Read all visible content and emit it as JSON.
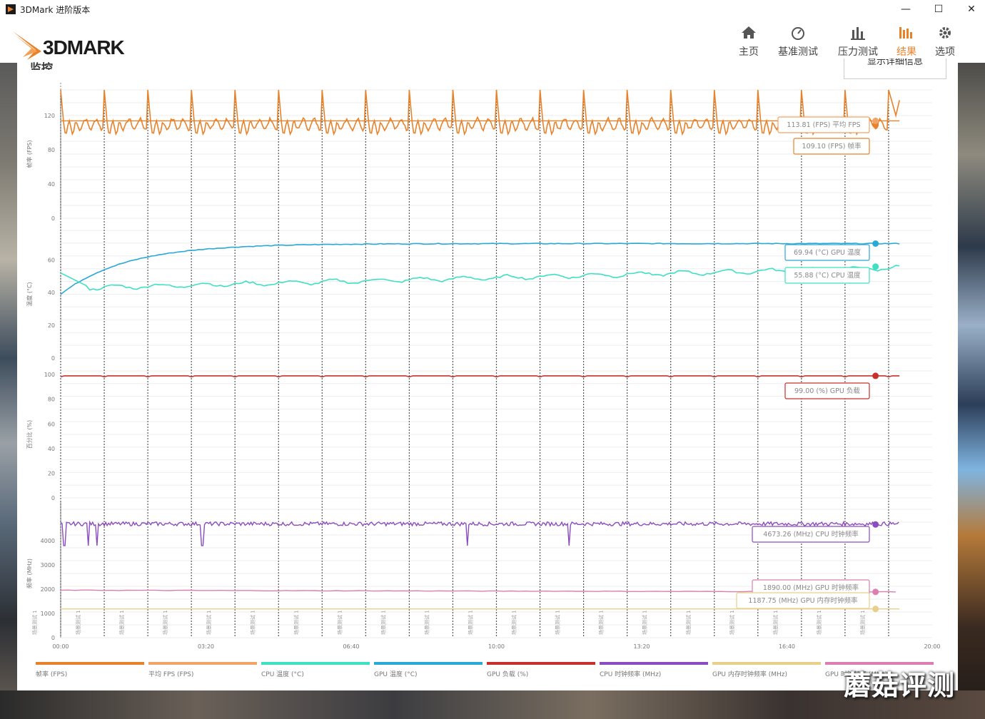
{
  "window": {
    "title": "3DMark 进阶版本",
    "min": "—",
    "max": "☐",
    "close": "✕"
  },
  "logo": {
    "text": "3DMARK"
  },
  "nav": [
    {
      "label": "主页",
      "icon": "home-icon"
    },
    {
      "label": "基准测试",
      "icon": "gauge-icon"
    },
    {
      "label": "压力测试",
      "icon": "bars-icon"
    },
    {
      "label": "结果",
      "icon": "results-icon",
      "active": true
    },
    {
      "label": "选项",
      "icon": "gear-icon"
    }
  ],
  "page": {
    "title": "监控",
    "details_button": "显示详细信息"
  },
  "colors": {
    "fps": "#e8822a",
    "avg_fps": "#f0a468",
    "cpu_temp": "#3ee0c2",
    "gpu_temp": "#2aa8d8",
    "gpu_load": "#c8302c",
    "cpu_clock": "#8a4cc0",
    "gpu_mem_clock": "#e8cf8a",
    "gpu_clock": "#dc7fb0"
  },
  "chart_data": [
    {
      "type": "line",
      "ylabel": "帧率 (FPS)",
      "yticks": [
        0,
        40,
        80,
        120
      ],
      "ylim": [
        0,
        150
      ],
      "series": [
        {
          "name": "帧率 (FPS)",
          "pattern": "sawtooth",
          "low": 98,
          "high": 150,
          "period_s": 210
        },
        {
          "name": "平均 FPS (FPS)",
          "constant": 113.81
        }
      ],
      "labels": [
        "113.81 (FPS) 平均 FPS",
        "109.10 (FPS) 帧率"
      ]
    },
    {
      "type": "line",
      "ylabel": "温度 (°C)",
      "yticks": [
        0,
        20,
        40,
        60
      ],
      "ylim": [
        0,
        78
      ],
      "series": [
        {
          "name": "GPU 温度 (°C)",
          "start": 39,
          "end": 69.94
        },
        {
          "name": "CPU 温度 (°C)",
          "start": 52,
          "end": 55.88
        }
      ],
      "labels": [
        "69.94 (°C) GPU 温度",
        "55.88 (°C) CPU 温度"
      ]
    },
    {
      "type": "line",
      "ylabel": "百分比 (%)",
      "yticks": [
        0,
        20,
        40,
        60,
        80,
        100
      ],
      "ylim": [
        0,
        103
      ],
      "series": [
        {
          "name": "GPU 负载 (%)",
          "constant": 99
        }
      ],
      "labels": [
        "99.00 (%) GPU 负载"
      ]
    },
    {
      "type": "line",
      "ylabel": "频率 (MHz)",
      "yticks": [
        0,
        1000,
        2000,
        3000,
        4000
      ],
      "ylim": [
        0,
        5300
      ],
      "series": [
        {
          "name": "CPU 时钟频率 (MHz)",
          "constant": 4673.26
        },
        {
          "name": "GPU 时钟频率 (MHz)",
          "constant": 1890.0
        },
        {
          "name": "GPU 内存时钟频率 (MHz)",
          "constant": 1187.75
        }
      ],
      "labels": [
        "4673.26 (MHz) CPU 时钟频率",
        "1890.00 (MHz) GPU 时钟频率",
        "1187.75 (MHz) GPU 内存时钟频率"
      ]
    }
  ],
  "x_axis": {
    "ticks": [
      "00:00",
      "03:20",
      "06:40",
      "10:00",
      "13:20",
      "16:40",
      "20:00"
    ],
    "marker_label": "场景测试 1"
  },
  "legend": [
    {
      "label": "帧率 (FPS)",
      "color": "#e8822a"
    },
    {
      "label": "平均 FPS (FPS)",
      "color": "#f0a468"
    },
    {
      "label": "CPU 温度 (°C)",
      "color": "#3ee0c2"
    },
    {
      "label": "GPU 温度 (°C)",
      "color": "#2aa8d8"
    },
    {
      "label": "GPU 负载 (%)",
      "color": "#c8302c"
    },
    {
      "label": "CPU 时钟频率 (MHz)",
      "color": "#8a4cc0"
    },
    {
      "label": "GPU 内存时钟频率 (MHz)",
      "color": "#e8cf8a"
    },
    {
      "label": "GPU 时钟频率 (MHz)",
      "color": "#dc7fb0"
    }
  ],
  "watermark": "蘑菇评测"
}
